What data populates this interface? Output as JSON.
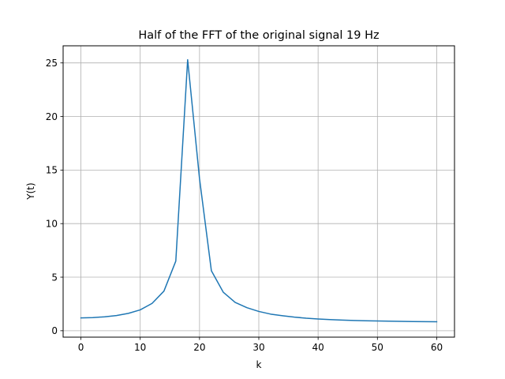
{
  "chart_data": {
    "type": "line",
    "title": "Half of the FFT of the original signal 19 Hz",
    "xlabel": "k",
    "ylabel": "Y(t)",
    "xlim": [
      -3,
      63
    ],
    "ylim": [
      -0.6,
      26.6
    ],
    "xticks": [
      0,
      10,
      20,
      30,
      40,
      50,
      60
    ],
    "yticks": [
      0,
      5,
      10,
      15,
      20,
      25
    ],
    "grid": true,
    "legend": "none",
    "series": [
      {
        "color": "#1f77b4",
        "x": [
          0,
          2,
          4,
          6,
          8,
          10,
          12,
          14,
          16,
          18,
          20,
          22,
          24,
          26,
          28,
          30,
          32,
          34,
          36,
          38,
          40,
          42,
          44,
          46,
          48,
          50,
          52,
          54,
          56,
          58,
          60
        ],
        "y": [
          1.2,
          1.22,
          1.3,
          1.42,
          1.62,
          1.95,
          2.55,
          3.7,
          6.5,
          25.3,
          14.2,
          5.6,
          3.6,
          2.65,
          2.15,
          1.8,
          1.55,
          1.4,
          1.27,
          1.17,
          1.1,
          1.04,
          0.99,
          0.96,
          0.93,
          0.91,
          0.89,
          0.87,
          0.86,
          0.85,
          0.84
        ]
      }
    ]
  }
}
